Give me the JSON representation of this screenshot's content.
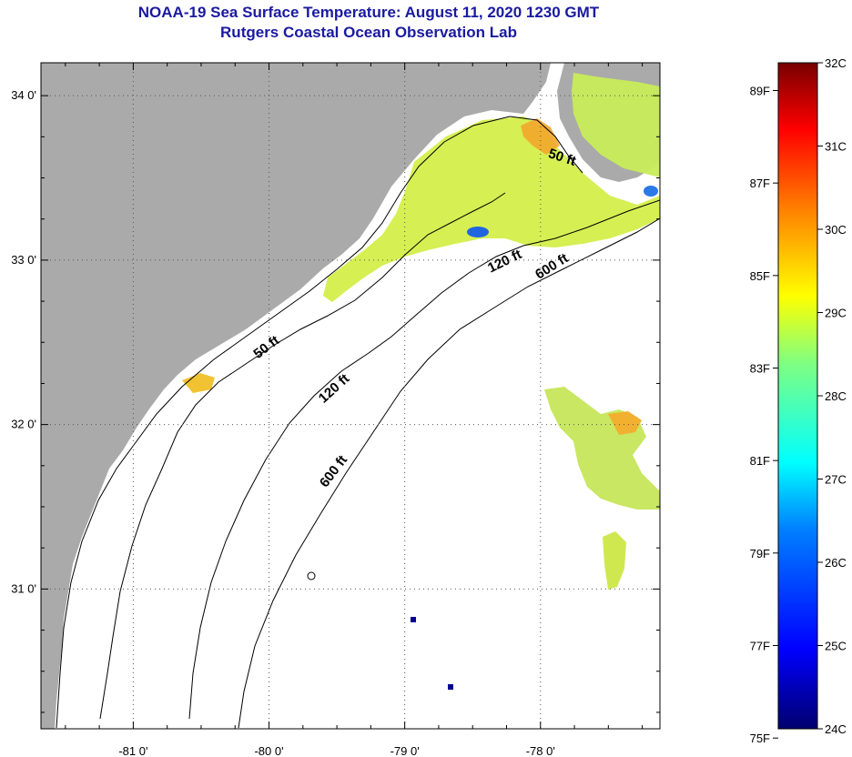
{
  "title": {
    "line1": "NOAA-19 Sea Surface Temperature:  August 11, 2020 1230 GMT",
    "line2": "Rutgers Coastal Ocean Observation Lab"
  },
  "map": {
    "lon_range": [
      -81.68,
      -77.12
    ],
    "lat_range": [
      30.15,
      34.2
    ],
    "lon_ticks": [
      {
        "value": -81,
        "label": "-81 0'"
      },
      {
        "value": -80,
        "label": "-80 0'"
      },
      {
        "value": -79,
        "label": "-79 0'"
      },
      {
        "value": -78,
        "label": "-78 0'"
      }
    ],
    "lat_ticks": [
      {
        "value": 34,
        "label": "34 0'"
      },
      {
        "value": 33,
        "label": "33 0'"
      },
      {
        "value": 32,
        "label": "32 0'"
      },
      {
        "value": 31,
        "label": "31 0'"
      }
    ],
    "land_color": "#aaaaaa",
    "contours": [
      {
        "depth": "50 ft",
        "label": "50 ft",
        "label_pos": [
          -80.0,
          32.45
        ],
        "label_angle": -37
      },
      {
        "depth": "50 ft",
        "label": "50 ft",
        "label_pos": [
          -77.85,
          33.6
        ],
        "label_angle": 18
      },
      {
        "depth": "120 ft",
        "label": "120 ft",
        "label_pos": [
          -79.5,
          32.2
        ],
        "label_angle": -42
      },
      {
        "depth": "120 ft",
        "label": "120 ft",
        "label_pos": [
          -78.25,
          32.97
        ],
        "label_angle": -26
      },
      {
        "depth": "600 ft",
        "label": "600 ft",
        "label_pos": [
          -79.5,
          31.7
        ],
        "label_angle": -53
      },
      {
        "depth": "600 ft",
        "label": "600 ft",
        "label_pos": [
          -77.9,
          32.94
        ],
        "label_angle": -32
      }
    ]
  },
  "colorbar": {
    "min_c": 24,
    "max_c": 32,
    "celsius_labels": [
      "32C",
      "31C",
      "30C",
      "29C",
      "28C",
      "27C",
      "26C",
      "25C",
      "24C"
    ],
    "fahrenheit_labels": [
      "89F",
      "87F",
      "85F",
      "83F",
      "81F",
      "79F",
      "77F",
      "75F"
    ],
    "colors": [
      "#000080",
      "#0000ff",
      "#0080ff",
      "#00ffff",
      "#80ff80",
      "#ffff00",
      "#ff8000",
      "#ff0000",
      "#800000"
    ]
  }
}
